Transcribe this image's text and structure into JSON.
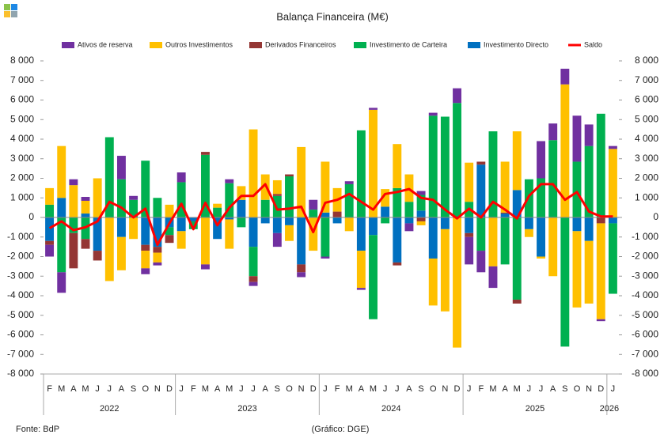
{
  "chart_data": {
    "type": "bar",
    "stacked": true,
    "title": "Balança Financeira (M€)",
    "source": "Fonte: BdP",
    "credit": "(Gráfico: DGE)",
    "categories": [
      "F",
      "M",
      "A",
      "M",
      "J",
      "J",
      "A",
      "S",
      "O",
      "N",
      "D",
      "J",
      "F",
      "M",
      "A",
      "M",
      "J",
      "J",
      "A",
      "S",
      "O",
      "N",
      "D",
      "J",
      "F",
      "M",
      "A",
      "M",
      "J",
      "J",
      "A",
      "S",
      "O",
      "N",
      "D",
      "J",
      "F",
      "M",
      "A",
      "M",
      "J",
      "J",
      "A",
      "S",
      "O",
      "N",
      "D",
      "J"
    ],
    "x_groups": [
      {
        "label": "2022",
        "count": 11
      },
      {
        "label": "2023",
        "count": 12
      },
      {
        "label": "2024",
        "count": 12
      },
      {
        "label": "2025",
        "count": 12
      },
      {
        "label": "2026",
        "count": 1
      }
    ],
    "series": [
      {
        "name": "Ativos de reserva",
        "color": "#7030a0",
        "values": [
          -600,
          -1050,
          300,
          200,
          0,
          0,
          1200,
          200,
          -300,
          -150,
          0,
          500,
          0,
          -250,
          0,
          200,
          0,
          -200,
          0,
          -700,
          0,
          -250,
          500,
          -100,
          0,
          150,
          -100,
          100,
          0,
          0,
          -400,
          200,
          150,
          0,
          750,
          -1400,
          -1100,
          -1100,
          0,
          0,
          0,
          1900,
          850,
          800,
          2350,
          1100,
          -100,
          150
        ]
      },
      {
        "name": "Outros Investimentos",
        "color": "#ffc000",
        "values": [
          850,
          2650,
          1650,
          650,
          2000,
          -3250,
          -1700,
          -1100,
          -900,
          -500,
          650,
          -900,
          0,
          -2400,
          200,
          -1500,
          700,
          4500,
          1300,
          700,
          -800,
          3600,
          -1700,
          2600,
          1200,
          -700,
          -1900,
          5500,
          900,
          2250,
          1400,
          -200,
          -2400,
          -4200,
          -6650,
          2000,
          0,
          -2500,
          2600,
          3000,
          -400,
          -100,
          -3000,
          6800,
          -3900,
          -3200,
          -4900,
          3500
        ]
      },
      {
        "name": "Derivados Financeiros",
        "color": "#943634",
        "values": [
          -200,
          0,
          -1800,
          -500,
          -500,
          0,
          0,
          0,
          -300,
          -300,
          -400,
          0,
          0,
          150,
          0,
          0,
          0,
          -300,
          0,
          100,
          100,
          -400,
          0,
          0,
          300,
          0,
          0,
          0,
          0,
          -150,
          0,
          -200,
          0,
          0,
          0,
          -200,
          150,
          0,
          50,
          -200,
          0,
          0,
          0,
          0,
          0,
          0,
          -300,
          0
        ]
      },
      {
        "name": "Investimento de Carteira",
        "color": "#00b050",
        "values": [
          650,
          -2800,
          -800,
          -1100,
          0,
          4100,
          1950,
          900,
          2900,
          1000,
          -400,
          1800,
          -400,
          3200,
          500,
          1750,
          -500,
          -1500,
          900,
          1100,
          2100,
          0,
          400,
          -2000,
          0,
          1700,
          4450,
          -4300,
          -300,
          1500,
          800,
          800,
          5200,
          5150,
          5850,
          800,
          -1700,
          4400,
          -2400,
          -4200,
          1950,
          2000,
          3950,
          -6600,
          2850,
          3650,
          5300,
          -3600
        ]
      },
      {
        "name": "Investimento Directo",
        "color": "#0070c0",
        "values": [
          -1200,
          1000,
          0,
          200,
          -1700,
          0,
          -1000,
          0,
          -1400,
          -1500,
          -500,
          -700,
          -200,
          0,
          -1100,
          -100,
          900,
          -1500,
          -300,
          -800,
          -400,
          -2400,
          0,
          250,
          -300,
          0,
          -1700,
          -900,
          550,
          -2300,
          -300,
          350,
          -2100,
          -600,
          0,
          -800,
          2700,
          0,
          200,
          1400,
          -600,
          -2000,
          0,
          0,
          -700,
          -1200,
          0,
          -300
        ]
      },
      {
        "name": "Saldo",
        "color": "#ff0000",
        "type": "line",
        "values": [
          -550,
          -200,
          -650,
          -500,
          -200,
          800,
          500,
          0,
          450,
          -1400,
          -300,
          700,
          -600,
          750,
          -400,
          500,
          1100,
          1100,
          1700,
          400,
          450,
          550,
          -750,
          750,
          900,
          1200,
          800,
          400,
          1200,
          1300,
          1450,
          1000,
          900,
          400,
          -50,
          450,
          0,
          800,
          400,
          -50,
          1100,
          1700,
          1700,
          900,
          1300,
          300,
          50,
          50
        ]
      }
    ],
    "ylim": [
      -8000,
      8000
    ],
    "yticks": [
      {
        "value": -8000,
        "label": "-8 000"
      },
      {
        "value": -7000,
        "label": "-7 000"
      },
      {
        "value": -6000,
        "label": "-6 000"
      },
      {
        "value": -5000,
        "label": "-5 000"
      },
      {
        "value": -4000,
        "label": "-4 000"
      },
      {
        "value": -3000,
        "label": "-3 000"
      },
      {
        "value": -2000,
        "label": "-2 000"
      },
      {
        "value": -1000,
        "label": "-1 000"
      },
      0,
      {
        "value": 1000,
        "label": "1 000"
      },
      {
        "value": 2000,
        "label": "2 000"
      },
      {
        "value": 3000,
        "label": "3 000"
      },
      {
        "value": 4000,
        "label": "4 000"
      },
      {
        "value": 5000,
        "label": "5 000"
      },
      {
        "value": 6000,
        "label": "6 000"
      },
      {
        "value": 7000,
        "label": "7 000"
      },
      {
        "value": 8000,
        "label": "8 000"
      }
    ],
    "y2lim": [
      -8000,
      8000
    ],
    "y2ticks": [
      {
        "value": -8000,
        "label": "-8 000"
      },
      {
        "value": -7000,
        "label": "-7 000"
      },
      {
        "value": -6000,
        "label": "-6 000"
      },
      {
        "value": -5000,
        "label": "-5 000"
      },
      {
        "value": -4000,
        "label": "-4 000"
      },
      {
        "value": -3000,
        "label": "-3 000"
      },
      {
        "value": -2000,
        "label": "-2 000"
      },
      {
        "value": -1000,
        "label": "-1 000"
      },
      0,
      {
        "value": 1000,
        "label": "1 000"
      },
      {
        "value": 2000,
        "label": "2 000"
      },
      {
        "value": 3000,
        "label": "3 000"
      },
      {
        "value": 4000,
        "label": "4 000"
      },
      {
        "value": 5000,
        "label": "5 000"
      },
      {
        "value": 6000,
        "label": "6 000"
      },
      {
        "value": 7000,
        "label": "7 000"
      },
      {
        "value": 8000,
        "label": "8 000"
      }
    ],
    "grid": false,
    "legend": "top"
  }
}
